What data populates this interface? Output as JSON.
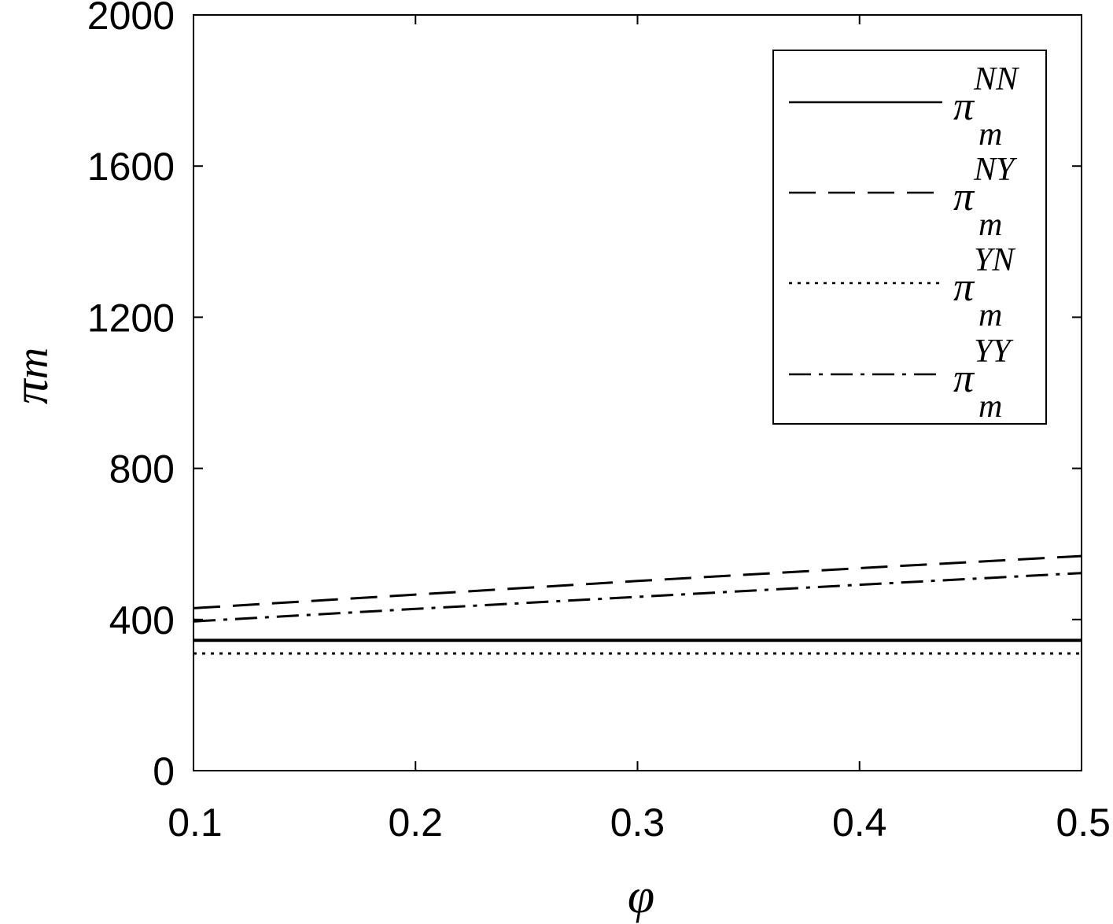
{
  "chart_data": {
    "type": "line",
    "title": "",
    "xlabel": "φ",
    "ylabel_base": "π",
    "ylabel_sub": "m",
    "xlim": [
      0.1,
      0.5
    ],
    "ylim": [
      0,
      2000
    ],
    "xticks": [
      0.1,
      0.2,
      0.3,
      0.4,
      0.5
    ],
    "xtick_labels": [
      "0.1",
      "0.2",
      "0.3",
      "0.4",
      "0.5"
    ],
    "yticks": [
      0,
      400,
      800,
      1200,
      1600,
      2000
    ],
    "ytick_labels": [
      "0",
      "400",
      "800",
      "1200",
      "1600",
      "2000"
    ],
    "grid": false,
    "legend_position": "top-right",
    "x": [
      0.1,
      0.2,
      0.3,
      0.4,
      0.5
    ],
    "series": [
      {
        "label_base": "π",
        "label_sup": "NN",
        "label_sub": "m",
        "style": "solid",
        "values": [
          345,
          345,
          345,
          345,
          345
        ]
      },
      {
        "label_base": "π",
        "label_sup": "NY",
        "label_sub": "m",
        "style": "dashed",
        "values": [
          430,
          466,
          502,
          536,
          568
        ]
      },
      {
        "label_base": "π",
        "label_sup": "YN",
        "label_sub": "m",
        "style": "dotted",
        "values": [
          310,
          310,
          310,
          310,
          310
        ]
      },
      {
        "label_base": "π",
        "label_sup": "YY",
        "label_sub": "m",
        "style": "dashdot",
        "values": [
          395,
          428,
          460,
          492,
          523
        ]
      }
    ]
  }
}
